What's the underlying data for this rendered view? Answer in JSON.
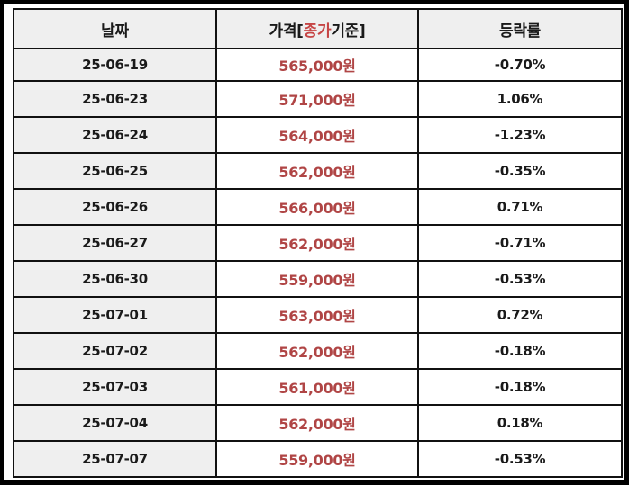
{
  "table": {
    "headers": {
      "date": "날짜",
      "price_prefix": "가격[",
      "price_highlight": "종가",
      "price_suffix": "기준]",
      "change": "등락률"
    },
    "rows": [
      {
        "date": "25-06-19",
        "price": "565,000원",
        "change": "-0.70%"
      },
      {
        "date": "25-06-23",
        "price": "571,000원",
        "change": "1.06%"
      },
      {
        "date": "25-06-24",
        "price": "564,000원",
        "change": "-1.23%"
      },
      {
        "date": "25-06-25",
        "price": "562,000원",
        "change": "-0.35%"
      },
      {
        "date": "25-06-26",
        "price": "566,000원",
        "change": "0.71%"
      },
      {
        "date": "25-06-27",
        "price": "562,000원",
        "change": "-0.71%"
      },
      {
        "date": "25-06-30",
        "price": "559,000원",
        "change": "-0.53%"
      },
      {
        "date": "25-07-01",
        "price": "563,000원",
        "change": "0.72%"
      },
      {
        "date": "25-07-02",
        "price": "562,000원",
        "change": "-0.18%"
      },
      {
        "date": "25-07-03",
        "price": "561,000원",
        "change": "-0.18%"
      },
      {
        "date": "25-07-04",
        "price": "562,000원",
        "change": "0.18%"
      },
      {
        "date": "25-07-07",
        "price": "559,000원",
        "change": "-0.53%"
      }
    ]
  },
  "colors": {
    "price_text": "#b04545",
    "header_highlight": "#c64545",
    "header_bg": "#efefef",
    "date_bg": "#efefef",
    "border": "#111111",
    "frame": "#000000"
  }
}
